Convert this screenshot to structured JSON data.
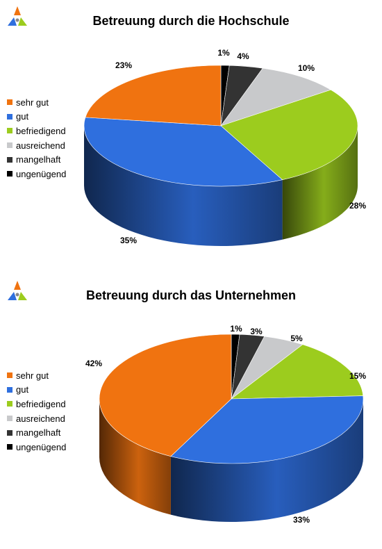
{
  "colors": {
    "sehr gut": "#f07310",
    "gut": "#2f6fde",
    "befriedigend": "#9ccc1e",
    "ausreichend": "#c8c9cb",
    "mangelhaft": "#333333",
    "ungenügend": "#000000"
  },
  "chart_data": [
    {
      "type": "pie",
      "title": "Betreuung durch die Hochschule",
      "categories": [
        "ungenügend",
        "mangelhaft",
        "ausreichend",
        "befriedigend",
        "gut",
        "sehr gut"
      ],
      "values": [
        1,
        4,
        10,
        28,
        35,
        23
      ],
      "value_labels": [
        "1%",
        "4%",
        "10%",
        "28%",
        "35%",
        "23%"
      ],
      "legend": [
        "sehr gut",
        "gut",
        "befriedigend",
        "ausreichend",
        "mangelhaft",
        "ungenügend"
      ],
      "legend_position": "left",
      "style": "3d"
    },
    {
      "type": "pie",
      "title": "Betreuung durch das Unternehmen",
      "categories": [
        "ungenügend",
        "mangelhaft",
        "ausreichend",
        "befriedigend",
        "gut",
        "sehr gut"
      ],
      "values": [
        1,
        3,
        5,
        15,
        33,
        42
      ],
      "value_labels": [
        "1%",
        "3%",
        "5%",
        "15%",
        "33%",
        "42%"
      ],
      "legend": [
        "sehr gut",
        "gut",
        "befriedigend",
        "ausreichend",
        "mangelhaft",
        "ungenügend"
      ],
      "legend_position": "left",
      "style": "3d"
    }
  ]
}
